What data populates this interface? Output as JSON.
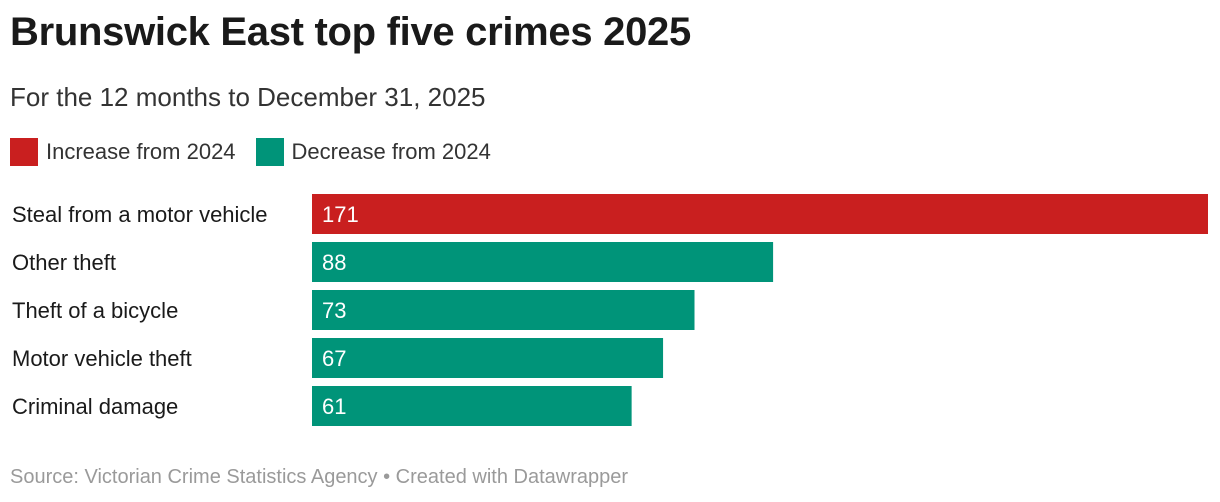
{
  "chart_data": {
    "type": "bar",
    "orientation": "horizontal",
    "title": "Brunswick East top five crimes 2025",
    "subtitle": "For the 12 months to December 31, 2025",
    "categories": [
      "Steal from a motor vehicle",
      "Other theft",
      "Theft of a bicycle",
      "Motor vehicle theft",
      "Criminal damage"
    ],
    "values": [
      171,
      88,
      73,
      67,
      61
    ],
    "value_labels": [
      "171",
      "88",
      "73",
      "67",
      "61"
    ],
    "change_status": [
      "increase",
      "decrease",
      "decrease",
      "decrease",
      "decrease"
    ],
    "legend": [
      {
        "key": "increase",
        "label": "Increase from 2024",
        "color": "#c91f1f"
      },
      {
        "key": "decrease",
        "label": "Decrease from 2024",
        "color": "#009479"
      }
    ],
    "legend_position": "top-left",
    "xlim": [
      0,
      171
    ],
    "grid": false,
    "xlabel": "",
    "ylabel": ""
  },
  "footer": {
    "source": "Source: Victorian Crime Statistics Agency • Created with Datawrapper"
  }
}
